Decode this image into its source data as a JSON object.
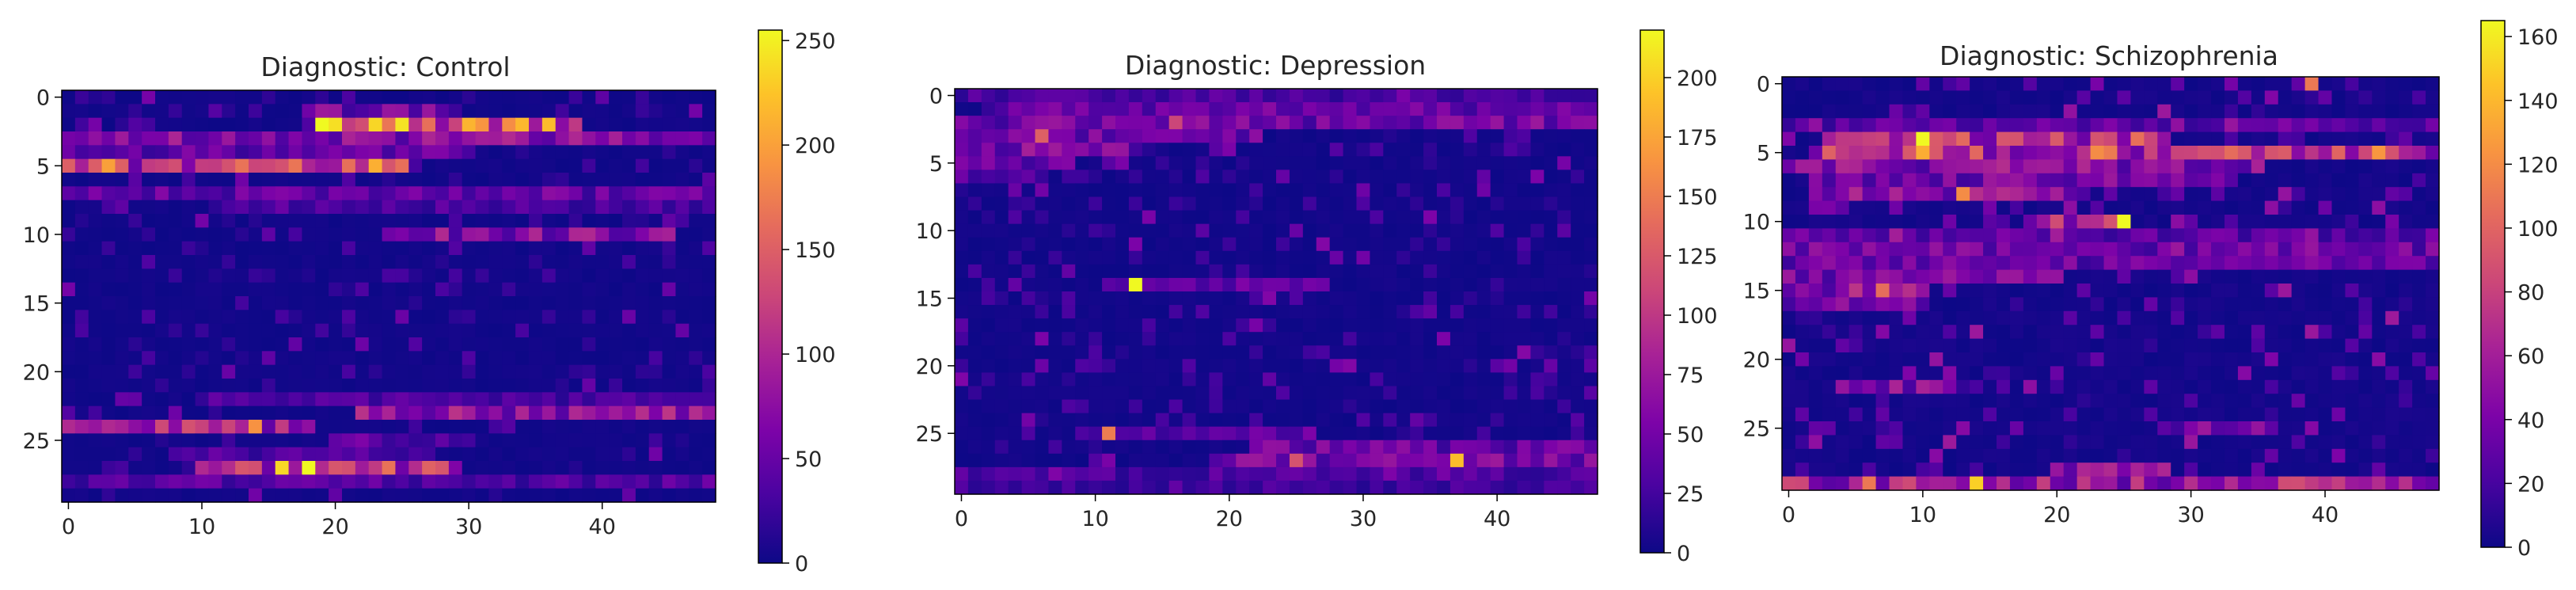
{
  "chart_data": [
    {
      "type": "heatmap",
      "title": "Diagnostic: Control",
      "n_rows": 30,
      "n_cols": 49,
      "x_ticks": [
        0,
        10,
        20,
        30,
        40
      ],
      "y_ticks": [
        0,
        5,
        10,
        15,
        20,
        25
      ],
      "colormap": "plasma",
      "color_range": [
        0,
        255
      ],
      "colorbar_ticks": [
        0,
        50,
        100,
        150,
        200,
        250
      ],
      "bands": [
        {
          "row": 1,
          "cols": [
            18,
            29
          ],
          "value": 70
        },
        {
          "row": 2,
          "cols": [
            19,
            38
          ],
          "value": 200
        },
        {
          "row": 3,
          "cols": [
            0,
            48
          ],
          "value": 85
        },
        {
          "row": 4,
          "cols": [
            0,
            30
          ],
          "value": 60
        },
        {
          "row": 5,
          "cols": [
            0,
            25
          ],
          "value": 135
        },
        {
          "row": 7,
          "cols": [
            0,
            48
          ],
          "value": 60
        },
        {
          "row": 8,
          "cols": [
            11,
            48
          ],
          "value": 40
        },
        {
          "row": 10,
          "cols": [
            24,
            45
          ],
          "value": 85
        },
        {
          "row": 22,
          "cols": [
            10,
            48
          ],
          "value": 40
        },
        {
          "row": 23,
          "cols": [
            22,
            48
          ],
          "value": 95
        },
        {
          "row": 24,
          "cols": [
            0,
            18
          ],
          "value": 115
        },
        {
          "row": 25,
          "cols": [
            20,
            30
          ],
          "value": 55
        },
        {
          "row": 26,
          "cols": [
            8,
            27
          ],
          "value": 45
        },
        {
          "row": 27,
          "cols": [
            10,
            29
          ],
          "value": 140
        },
        {
          "row": 28,
          "cols": [
            0,
            48
          ],
          "value": 45
        }
      ],
      "peaks": [
        {
          "row": 2,
          "col": 19,
          "value": 255
        },
        {
          "row": 2,
          "col": 23,
          "value": 235
        },
        {
          "row": 5,
          "col": 3,
          "value": 200
        },
        {
          "row": 5,
          "col": 23,
          "value": 210
        },
        {
          "row": 27,
          "col": 16,
          "value": 235
        },
        {
          "row": 27,
          "col": 18,
          "value": 255
        },
        {
          "row": 24,
          "col": 14,
          "value": 190
        }
      ]
    },
    {
      "type": "heatmap",
      "title": "Diagnostic: Depression",
      "n_rows": 30,
      "n_cols": 48,
      "x_ticks": [
        0,
        10,
        20,
        30,
        40
      ],
      "y_ticks": [
        0,
        5,
        10,
        15,
        20,
        25
      ],
      "colormap": "plasma",
      "color_range": [
        0,
        220
      ],
      "colorbar_ticks": [
        0,
        25,
        50,
        75,
        100,
        125,
        150,
        175,
        200
      ],
      "bands": [
        {
          "row": 0,
          "cols": [
            0,
            47
          ],
          "value": 35
        },
        {
          "row": 1,
          "cols": [
            2,
            47
          ],
          "value": 50
        },
        {
          "row": 2,
          "cols": [
            0,
            47
          ],
          "value": 60
        },
        {
          "row": 3,
          "cols": [
            0,
            22
          ],
          "value": 55
        },
        {
          "row": 4,
          "cols": [
            0,
            12
          ],
          "value": 65
        },
        {
          "row": 5,
          "cols": [
            0,
            8
          ],
          "value": 50
        },
        {
          "row": 6,
          "cols": [
            0,
            5
          ],
          "value": 45
        },
        {
          "row": 14,
          "cols": [
            11,
            25
          ],
          "value": 40
        },
        {
          "row": 25,
          "cols": [
            9,
            26
          ],
          "value": 45
        },
        {
          "row": 26,
          "cols": [
            22,
            47
          ],
          "value": 55
        },
        {
          "row": 27,
          "cols": [
            20,
            47
          ],
          "value": 65
        },
        {
          "row": 28,
          "cols": [
            0,
            47
          ],
          "value": 35
        },
        {
          "row": 29,
          "cols": [
            0,
            47
          ],
          "value": 30
        }
      ],
      "peaks": [
        {
          "row": 14,
          "col": 13,
          "value": 220
        },
        {
          "row": 25,
          "col": 11,
          "value": 150
        },
        {
          "row": 27,
          "col": 37,
          "value": 190
        },
        {
          "row": 27,
          "col": 25,
          "value": 120
        },
        {
          "row": 3,
          "col": 6,
          "value": 130
        },
        {
          "row": 2,
          "col": 16,
          "value": 110
        }
      ]
    },
    {
      "type": "heatmap",
      "title": "Diagnostic: Schizophrenia",
      "n_rows": 30,
      "n_cols": 49,
      "x_ticks": [
        0,
        10,
        20,
        30,
        40
      ],
      "y_ticks": [
        0,
        5,
        10,
        15,
        20,
        25
      ],
      "colormap": "plasma",
      "color_range": [
        0,
        165
      ],
      "colorbar_ticks": [
        0,
        20,
        40,
        60,
        80,
        100,
        120,
        140,
        160
      ],
      "bands": [
        {
          "row": 3,
          "cols": [
            0,
            48
          ],
          "value": 35
        },
        {
          "row": 4,
          "cols": [
            3,
            28
          ],
          "value": 85
        },
        {
          "row": 5,
          "cols": [
            3,
            48
          ],
          "value": 90
        },
        {
          "row": 6,
          "cols": [
            0,
            35
          ],
          "value": 55
        },
        {
          "row": 7,
          "cols": [
            2,
            33
          ],
          "value": 45
        },
        {
          "row": 8,
          "cols": [
            2,
            22
          ],
          "value": 60
        },
        {
          "row": 10,
          "cols": [
            18,
            25
          ],
          "value": 80
        },
        {
          "row": 11,
          "cols": [
            0,
            48
          ],
          "value": 35
        },
        {
          "row": 12,
          "cols": [
            0,
            48
          ],
          "value": 45
        },
        {
          "row": 13,
          "cols": [
            0,
            48
          ],
          "value": 40
        },
        {
          "row": 14,
          "cols": [
            0,
            20
          ],
          "value": 45
        },
        {
          "row": 15,
          "cols": [
            0,
            10
          ],
          "value": 60
        },
        {
          "row": 16,
          "cols": [
            0,
            10
          ],
          "value": 45
        },
        {
          "row": 22,
          "cols": [
            4,
            12
          ],
          "value": 55
        },
        {
          "row": 25,
          "cols": [
            28,
            36
          ],
          "value": 45
        },
        {
          "row": 28,
          "cols": [
            20,
            28
          ],
          "value": 55
        },
        {
          "row": 29,
          "cols": [
            0,
            48
          ],
          "value": 70
        }
      ],
      "peaks": [
        {
          "row": 4,
          "col": 10,
          "value": 165
        },
        {
          "row": 5,
          "col": 10,
          "value": 135
        },
        {
          "row": 10,
          "col": 25,
          "value": 165
        },
        {
          "row": 29,
          "col": 14,
          "value": 150
        },
        {
          "row": 5,
          "col": 44,
          "value": 125
        },
        {
          "row": 5,
          "col": 23,
          "value": 120
        },
        {
          "row": 0,
          "col": 39,
          "value": 110
        },
        {
          "row": 8,
          "col": 13,
          "value": 120
        },
        {
          "row": 29,
          "col": 6,
          "value": 110
        },
        {
          "row": 15,
          "col": 7,
          "value": 105
        }
      ]
    }
  ]
}
